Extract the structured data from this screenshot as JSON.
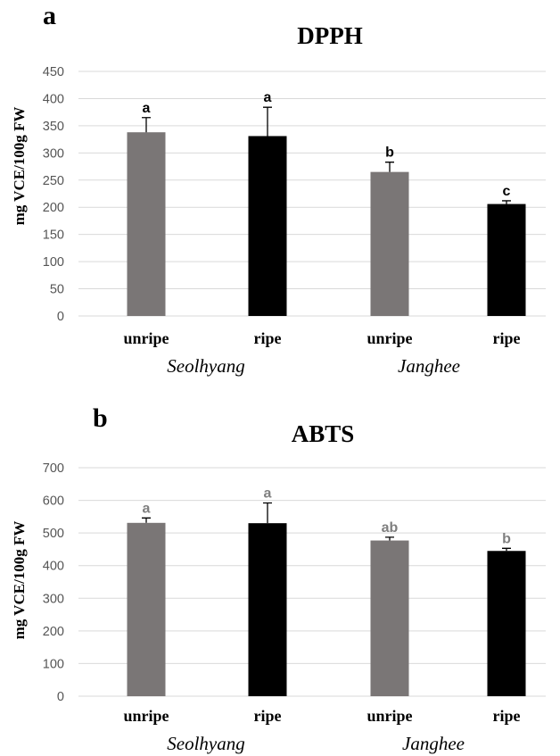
{
  "chart_data": [
    {
      "type": "bar",
      "panel": "a",
      "title": "DPPH",
      "ylabel": "mg VCE/100g FW",
      "xlabel": "",
      "ylim": [
        0,
        450
      ],
      "yticks": [
        0,
        50,
        100,
        150,
        200,
        250,
        300,
        350,
        400,
        450
      ],
      "grid": true,
      "legend": "none",
      "categories": [
        "unripe",
        "ripe",
        "unripe",
        "ripe"
      ],
      "groups": [
        {
          "label": "Seolhyang",
          "categories": [
            "unripe",
            "ripe"
          ]
        },
        {
          "label": "Janghee",
          "categories": [
            "unripe",
            "ripe"
          ]
        }
      ],
      "values": [
        338,
        331,
        265,
        206
      ],
      "errors": [
        27,
        53,
        18,
        6
      ],
      "significance": [
        "a",
        "a",
        "b",
        "c"
      ],
      "colors": [
        "#7a7676",
        "#000000",
        "#7a7676",
        "#000000"
      ],
      "significance_color": "#000000"
    },
    {
      "type": "bar",
      "panel": "b",
      "title": "ABTS",
      "ylabel": "mg VCE/100g FW",
      "xlabel": "",
      "ylim": [
        0,
        700
      ],
      "yticks": [
        0,
        100,
        200,
        300,
        400,
        500,
        600,
        700
      ],
      "grid": true,
      "legend": "none",
      "categories": [
        "unripe",
        "ripe",
        "unripe",
        "ripe"
      ],
      "groups": [
        {
          "label": "Seolhyang",
          "categories": [
            "unripe",
            "ripe"
          ]
        },
        {
          "label": "Janghee",
          "categories": [
            "unripe",
            "ripe"
          ]
        }
      ],
      "values": [
        531,
        530,
        477,
        445
      ],
      "errors": [
        15,
        62,
        10,
        8
      ],
      "significance": [
        "a",
        "a",
        "ab",
        "b"
      ],
      "colors": [
        "#7a7676",
        "#000000",
        "#7a7676",
        "#000000"
      ],
      "significance_color": "#7f7f7f"
    }
  ]
}
